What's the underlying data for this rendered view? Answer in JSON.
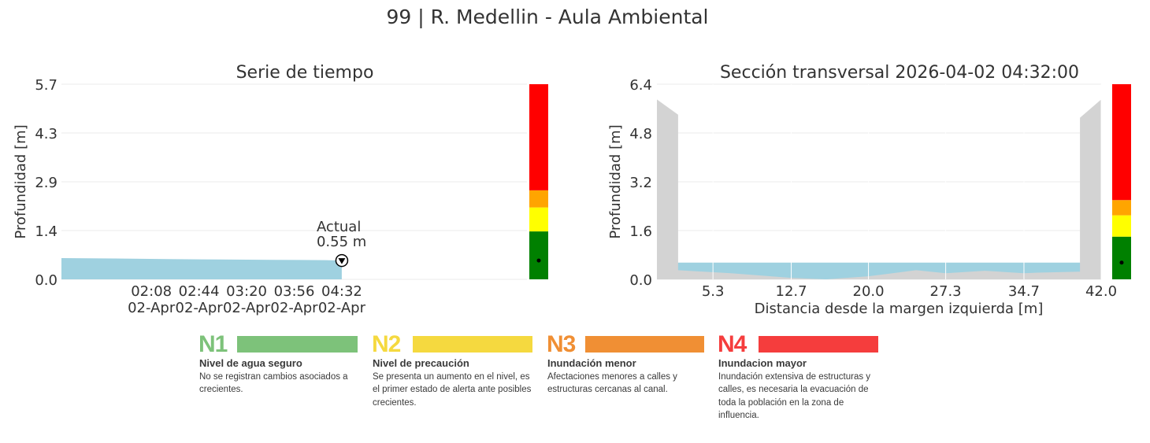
{
  "figure_title": "99 | R. Medellin - Aula Ambiental",
  "colors": {
    "water": "#9fd1e0",
    "ground": "#d3d3d3",
    "level_green": "#008000",
    "level_yellow": "#ffff00",
    "level_orange": "#ffa500",
    "level_red": "#ff0000"
  },
  "chart_data": [
    {
      "type": "area",
      "title": "Serie de tiempo",
      "xlabel": "",
      "ylabel": "Profundidad [m]",
      "ylim": [
        0,
        5.7
      ],
      "yticks": [
        "0.0",
        "1.4",
        "2.9",
        "4.3",
        "5.7"
      ],
      "x_range_minutes": [
        0,
        352
      ],
      "xticks": [
        {
          "minute": 68,
          "label_time": "02:08",
          "label_date": "02-Apr"
        },
        {
          "minute": 104,
          "label_time": "02:44",
          "label_date": "02-Apr"
        },
        {
          "minute": 140,
          "label_time": "03:20",
          "label_date": "02-Apr"
        },
        {
          "minute": 176,
          "label_time": "03:56",
          "label_date": "02-Apr"
        },
        {
          "minute": 212,
          "label_time": "04:32",
          "label_date": "02-Apr"
        }
      ],
      "series": [
        {
          "x": [
            0,
            40,
            80,
            120,
            160,
            200,
            212
          ],
          "y": [
            0.62,
            0.61,
            0.59,
            0.58,
            0.57,
            0.56,
            0.55
          ]
        }
      ],
      "annotation": {
        "label": "Actual",
        "value_label": "0.55 m",
        "x": 212,
        "y": 0.55
      },
      "levels": [
        {
          "from": 0,
          "to": 1.4,
          "color": "#008000"
        },
        {
          "from": 1.4,
          "to": 2.1,
          "color": "#ffff00"
        },
        {
          "from": 2.1,
          "to": 2.6,
          "color": "#ffa500"
        },
        {
          "from": 2.6,
          "to": 5.7,
          "color": "#ff0000"
        }
      ],
      "current_level": 0.55,
      "grid": true
    },
    {
      "type": "area",
      "title": "Sección transversal 2026-04-02 04:32:00",
      "xlabel": "Distancia desde la margen izquierda [m]",
      "ylabel": "Profundidad [m]",
      "xlim": [
        0,
        42.0
      ],
      "ylim": [
        0,
        6.4
      ],
      "xticks": [
        "5.3",
        "12.7",
        "20.0",
        "27.3",
        "34.7",
        "42.0"
      ],
      "yticks": [
        "0.0",
        "1.6",
        "3.2",
        "4.8",
        "6.4"
      ],
      "ground_profile": {
        "x": [
          0,
          0,
          2.0,
          2.0,
          7.0,
          12.7,
          16.0,
          20.0,
          24.5,
          27.3,
          31.0,
          34.7,
          36.0,
          40.0,
          40.0,
          42.0,
          42.0
        ],
        "y": [
          0,
          5.9,
          5.4,
          0.3,
          0.2,
          0.05,
          0.0,
          0.1,
          0.3,
          0.2,
          0.28,
          0.2,
          0.22,
          0.25,
          5.3,
          5.9,
          0
        ]
      },
      "water_level": 0.55,
      "levels": [
        {
          "from": 0,
          "to": 1.4,
          "color": "#008000"
        },
        {
          "from": 1.4,
          "to": 2.1,
          "color": "#ffff00"
        },
        {
          "from": 2.1,
          "to": 2.6,
          "color": "#ffa500"
        },
        {
          "from": 2.6,
          "to": 6.4,
          "color": "#ff0000"
        }
      ],
      "current_level": 0.55,
      "grid": true
    }
  ],
  "legend": [
    {
      "code": "N1",
      "title": "Nivel de agua seguro",
      "description": "No se registran cambios asociados a crecientes.",
      "color": "#7dc27a"
    },
    {
      "code": "N2",
      "title": "Nivel de precaución",
      "description": "Se presenta un aumento en el nivel, es el primer estado de alerta ante posibles crecientes.",
      "color": "#f5d93f"
    },
    {
      "code": "N3",
      "title": "Inundación menor",
      "description": "Afectaciones menores a calles y estructuras cercanas al canal.",
      "color": "#f08f34"
    },
    {
      "code": "N4",
      "title": "Inundacion mayor",
      "description": "Inundación extensiva de estructuras y calles, es necesaria la evacuación de toda la población en la zona de influencia.",
      "color": "#f53d3d"
    }
  ]
}
